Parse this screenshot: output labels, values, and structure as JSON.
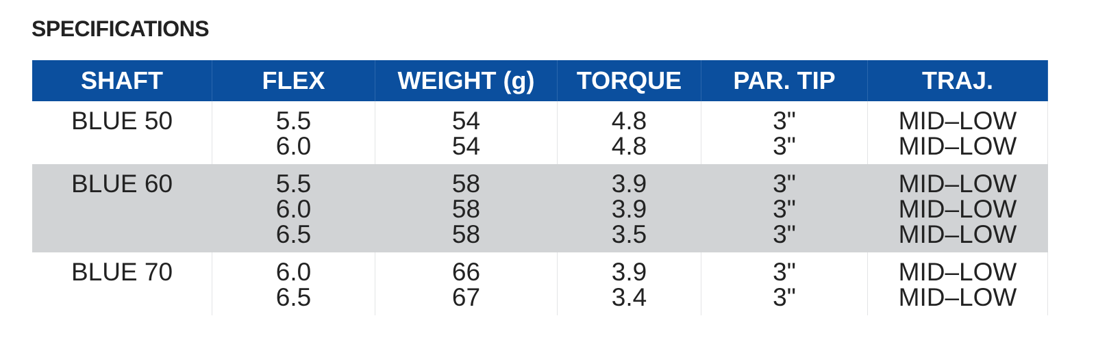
{
  "title": "SPECIFICATIONS",
  "table": {
    "header": [
      "SHAFT",
      "FLEX",
      "WEIGHT (g)",
      "TORQUE",
      "PAR. TIP",
      "TRAJ."
    ],
    "groups": [
      {
        "shaft": "BLUE 50",
        "rows": [
          [
            "5.5",
            "54",
            "4.8",
            "3\"",
            "MID–LOW"
          ],
          [
            "6.0",
            "54",
            "4.8",
            "3\"",
            "MID–LOW"
          ]
        ]
      },
      {
        "shaft": "BLUE 60",
        "rows": [
          [
            "5.5",
            "58",
            "3.9",
            "3\"",
            "MID–LOW"
          ],
          [
            "6.0",
            "58",
            "3.9",
            "3\"",
            "MID–LOW"
          ],
          [
            "6.5",
            "58",
            "3.5",
            "3\"",
            "MID–LOW"
          ]
        ]
      },
      {
        "shaft": "BLUE 70",
        "rows": [
          [
            "6.0",
            "66",
            "3.9",
            "3\"",
            "MID–LOW"
          ],
          [
            "6.5",
            "67",
            "3.4",
            "3\"",
            "MID–LOW"
          ]
        ]
      }
    ]
  }
}
